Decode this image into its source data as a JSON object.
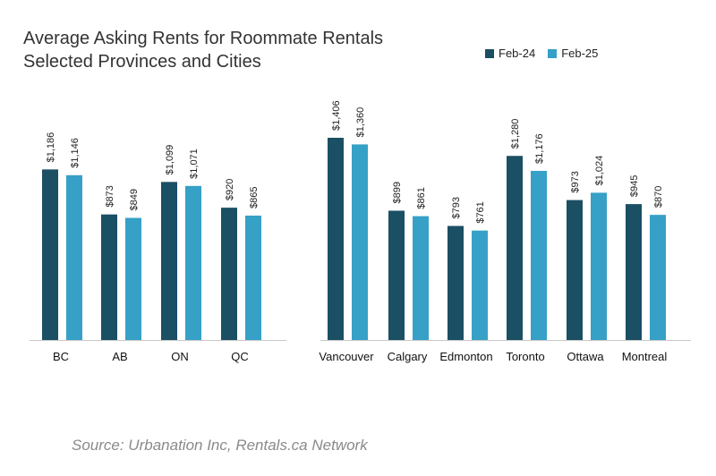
{
  "title_line1": "Average Asking Rents for Roommate Rentals",
  "title_line2": "Selected Provinces and Cities",
  "source": "Source: Urbanation Inc, Rentals.ca Network",
  "colors": {
    "feb24": "#1b4f63",
    "feb25": "#36a0c6"
  },
  "chart_data": {
    "type": "bar",
    "title": "Average Asking Rents for Roommate Rentals Selected Provinces and Cities",
    "legend_position": "top-right",
    "grid": false,
    "ylim": [
      0,
      1500
    ],
    "categories": [
      "BC",
      "AB",
      "ON",
      "QC",
      "Vancouver",
      "Calgary",
      "Edmonton",
      "Toronto",
      "Ottawa",
      "Montreal"
    ],
    "series": [
      {
        "name": "Feb-24",
        "values": [
          1186,
          873,
          1099,
          920,
          1406,
          899,
          793,
          1280,
          973,
          945
        ],
        "labels": [
          "$1,186",
          "$873",
          "$1,099",
          "$920",
          "$1,406",
          "$899",
          "$793",
          "$1,280",
          "$973",
          "$945"
        ]
      },
      {
        "name": "Feb-25",
        "values": [
          1146,
          849,
          1071,
          865,
          1360,
          861,
          761,
          1176,
          1024,
          870
        ],
        "labels": [
          "$1,146",
          "$849",
          "$1,071",
          "$865",
          "$1,360",
          "$861",
          "$761",
          "$1,176",
          "$1,024",
          "$870"
        ]
      }
    ]
  }
}
